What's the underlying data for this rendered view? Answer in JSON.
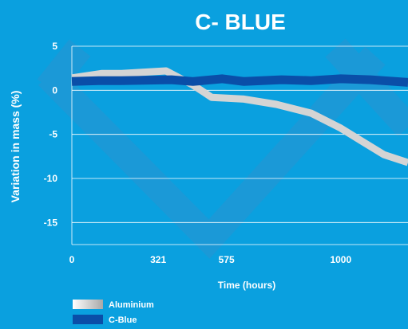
{
  "chart_data": {
    "type": "line",
    "title": "C- BLUE",
    "xlabel": "Time (hours)",
    "ylabel": "Variation in mass (%)",
    "ylim": [
      -17.5,
      5
    ],
    "xlim": [
      0,
      1250
    ],
    "yticks": [
      5,
      0,
      -5,
      -10,
      -15
    ],
    "xticks": [
      {
        "label": "0",
        "value": 0
      },
      {
        "label": "321",
        "value": 321
      },
      {
        "label": "575",
        "value": 575
      },
      {
        "label": "1000",
        "value": 1000
      }
    ],
    "grid": true,
    "legend_position": "bottom-left",
    "series": [
      {
        "name": "Aluminium",
        "color": "#d4d4d4",
        "x": [
          0,
          110,
          185,
          350,
          450,
          520,
          640,
          760,
          890,
          1000,
          1085,
          1160,
          1250
        ],
        "y": [
          1.4,
          1.9,
          1.9,
          2.2,
          0.6,
          -0.8,
          -1.0,
          -1.6,
          -2.6,
          -4.3,
          -5.9,
          -7.3,
          -8.2
        ]
      },
      {
        "name": "C-Blue",
        "color": "#0a4ea8",
        "x": [
          0,
          100,
          185,
          370,
          450,
          560,
          640,
          780,
          890,
          1000,
          1110,
          1250
        ],
        "y": [
          1.0,
          1.1,
          1.1,
          1.2,
          1.0,
          1.3,
          1.0,
          1.2,
          1.1,
          1.3,
          1.2,
          0.9
        ]
      }
    ]
  },
  "colors": {
    "background": "#0aa0df",
    "text": "#ffffff",
    "decor": "#2a94cf"
  }
}
